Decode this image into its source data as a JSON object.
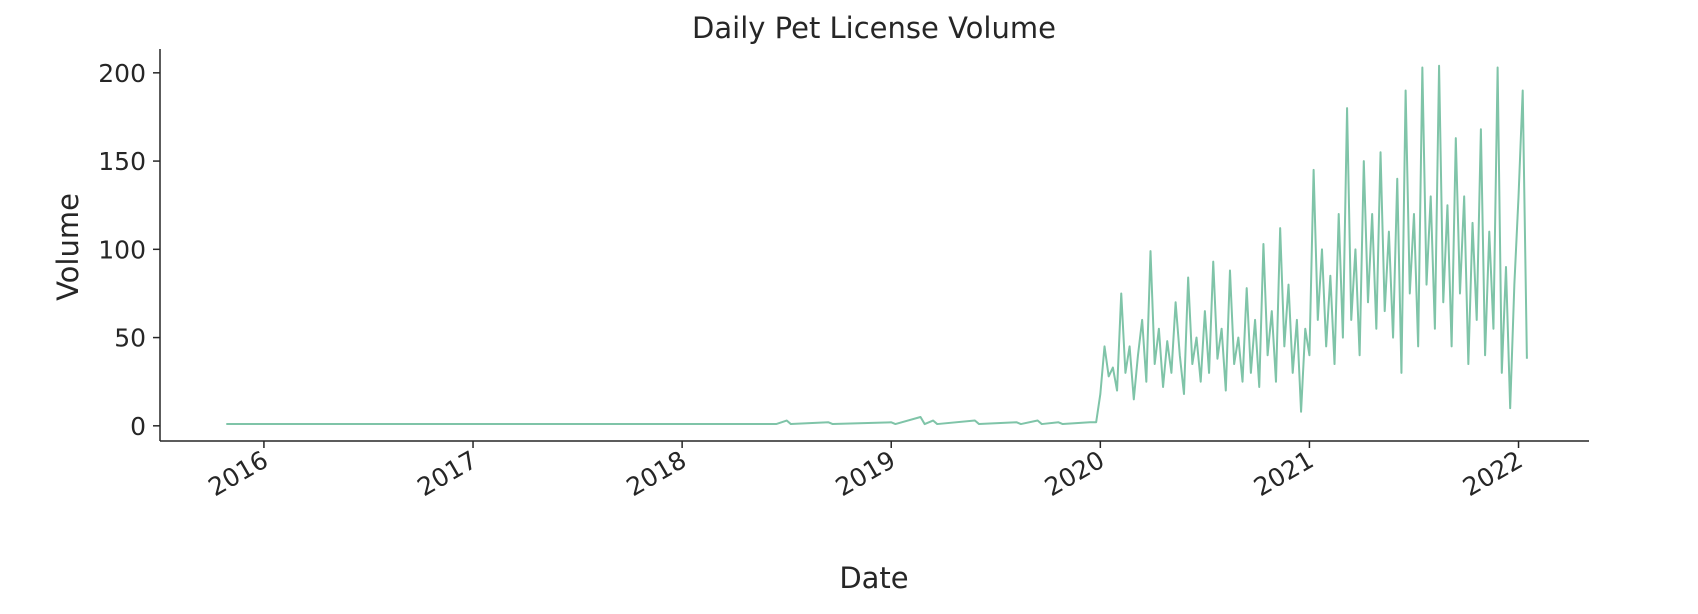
{
  "chart_data": {
    "type": "line",
    "title": "Daily Pet License Volume",
    "x_label": "Date",
    "y_label": "Volume",
    "color": "#7fc4a8",
    "x": [
      2015.82,
      2017.0,
      2018.0,
      2018.45,
      2018.5,
      2018.52,
      2018.7,
      2018.72,
      2019.0,
      2019.02,
      2019.14,
      2019.16,
      2019.2,
      2019.22,
      2019.4,
      2019.42,
      2019.6,
      2019.62,
      2019.7,
      2019.72,
      2019.8,
      2019.82,
      2019.95,
      2019.98,
      2020.0,
      2020.02,
      2020.04,
      2020.06,
      2020.08,
      2020.1,
      2020.12,
      2020.14,
      2020.16,
      2020.18,
      2020.2,
      2020.22,
      2020.24,
      2020.26,
      2020.28,
      2020.3,
      2020.32,
      2020.34,
      2020.36,
      2020.38,
      2020.4,
      2020.42,
      2020.44,
      2020.46,
      2020.48,
      2020.5,
      2020.52,
      2020.54,
      2020.56,
      2020.58,
      2020.6,
      2020.62,
      2020.64,
      2020.66,
      2020.68,
      2020.7,
      2020.72,
      2020.74,
      2020.76,
      2020.78,
      2020.8,
      2020.82,
      2020.84,
      2020.86,
      2020.88,
      2020.9,
      2020.92,
      2020.94,
      2020.96,
      2020.98,
      2021.0,
      2021.02,
      2021.04,
      2021.06,
      2021.08,
      2021.1,
      2021.12,
      2021.14,
      2021.16,
      2021.18,
      2021.2,
      2021.22,
      2021.24,
      2021.26,
      2021.28,
      2021.3,
      2021.32,
      2021.34,
      2021.36,
      2021.38,
      2021.4,
      2021.42,
      2021.44,
      2021.46,
      2021.48,
      2021.5,
      2021.52,
      2021.54,
      2021.56,
      2021.58,
      2021.6,
      2021.62,
      2021.64,
      2021.66,
      2021.68,
      2021.7,
      2021.72,
      2021.74,
      2021.76,
      2021.78,
      2021.8,
      2021.82,
      2021.84,
      2021.86,
      2021.88,
      2021.9,
      2021.92,
      2021.94,
      2021.96,
      2021.98,
      2022.0,
      2022.02,
      2022.04
    ],
    "values": [
      1,
      1,
      1,
      1,
      3,
      1,
      2,
      1,
      2,
      1,
      5,
      1,
      3,
      1,
      3,
      1,
      2,
      1,
      3,
      1,
      2,
      1,
      2,
      2,
      18,
      45,
      28,
      33,
      20,
      75,
      30,
      45,
      15,
      40,
      60,
      25,
      99,
      35,
      55,
      22,
      48,
      30,
      70,
      40,
      18,
      84,
      35,
      50,
      25,
      65,
      30,
      93,
      38,
      55,
      20,
      88,
      35,
      50,
      25,
      78,
      30,
      60,
      22,
      103,
      40,
      65,
      25,
      112,
      45,
      80,
      30,
      60,
      8,
      55,
      40,
      145,
      60,
      100,
      45,
      85,
      35,
      120,
      50,
      180,
      60,
      100,
      40,
      150,
      70,
      120,
      55,
      155,
      65,
      110,
      50,
      140,
      30,
      190,
      75,
      120,
      45,
      203,
      80,
      130,
      55,
      204,
      70,
      125,
      45,
      163,
      75,
      130,
      35,
      115,
      60,
      168,
      40,
      110,
      55,
      203,
      30,
      90,
      10,
      80,
      130,
      190,
      38
    ],
    "xlim": [
      2015.503,
      2022.337
    ],
    "xticks": [
      2016,
      2017,
      2018,
      2019,
      2020,
      2021,
      2022
    ],
    "ylim": [
      -8.6,
      213.5
    ],
    "yticks": [
      0,
      50,
      100,
      150,
      200
    ]
  }
}
